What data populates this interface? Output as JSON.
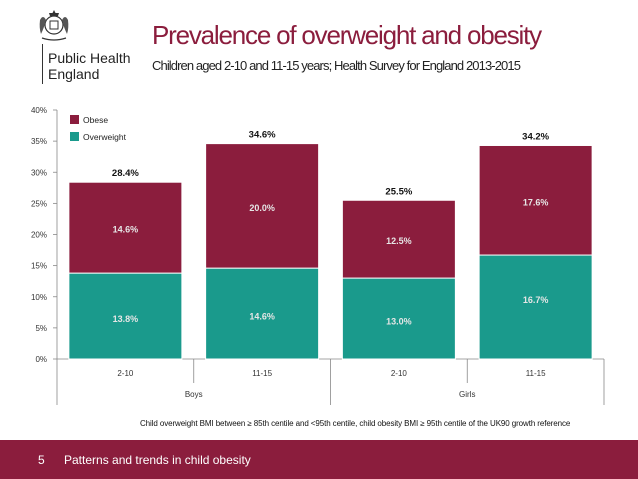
{
  "logo": {
    "line1": "Public Health",
    "line2": "England"
  },
  "header": {
    "title": "Prevalence of overweight and obesity",
    "subtitle": "Children aged 2-10 and 11-15 years; Health Survey for England 2013-2015"
  },
  "chart_data": {
    "type": "bar",
    "stacked": true,
    "categories": [
      "2-10",
      "11-15",
      "2-10",
      "11-15"
    ],
    "groups": [
      {
        "label": "Boys",
        "categories": [
          "2-10",
          "11-15"
        ]
      },
      {
        "label": "Girls",
        "categories": [
          "2-10",
          "11-15"
        ]
      }
    ],
    "series": [
      {
        "name": "Overweight",
        "values": [
          13.8,
          14.6,
          13.0,
          16.7
        ],
        "labels": [
          "13.8%",
          "14.6%",
          "13.0%",
          "16.7%"
        ],
        "color": "#1a9a8c"
      },
      {
        "name": "Obese",
        "values": [
          14.6,
          20.0,
          12.5,
          17.6
        ],
        "labels": [
          "14.6%",
          "20.0%",
          "12.5%",
          "17.6%"
        ],
        "color": "#8b1d3d"
      }
    ],
    "totals": [
      28.4,
      34.6,
      25.5,
      34.2
    ],
    "total_labels": [
      "28.4%",
      "34.6%",
      "25.5%",
      "34.2%"
    ],
    "ylim": [
      0,
      40
    ],
    "yticks": [
      0,
      5,
      10,
      15,
      20,
      25,
      30,
      35,
      40
    ],
    "ytick_labels": [
      "0%",
      "5%",
      "10%",
      "15%",
      "20%",
      "25%",
      "30%",
      "35%",
      "40%"
    ],
    "legend_position": "top-left",
    "grid": false,
    "title": "",
    "xlabel": "",
    "ylabel": ""
  },
  "footnote": "Child overweight BMI between ≥ 85th centile and <95th centile, child obesity BMI ≥ 95th centile of the UK90 growth reference",
  "footer": {
    "page_number": "5",
    "text": "Patterns and trends in child obesity",
    "color": "#8b1d3d"
  }
}
